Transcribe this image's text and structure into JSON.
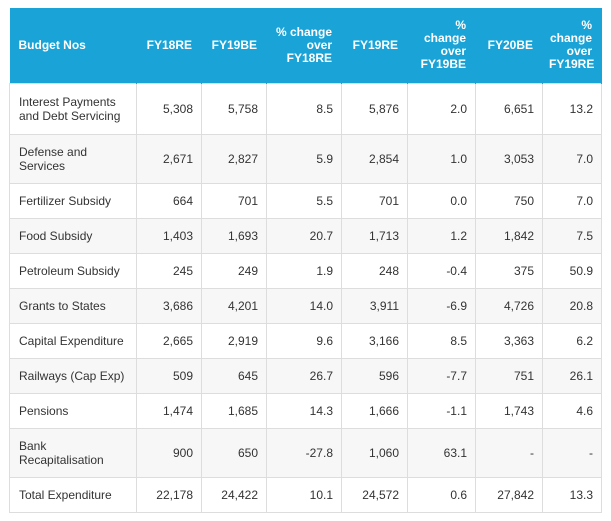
{
  "table": {
    "headers": [
      "Budget Nos",
      "FY18RE",
      "FY19BE",
      "% change over FY18RE",
      "FY19RE",
      "% change over FY19BE",
      "FY20BE",
      "% change over FY19RE"
    ],
    "rows": [
      [
        "Interest Payments and Debt Servicing",
        "5,308",
        "5,758",
        "8.5",
        "5,876",
        "2.0",
        "6,651",
        "13.2"
      ],
      [
        "Defense and Services",
        "2,671",
        "2,827",
        "5.9",
        "2,854",
        "1.0",
        "3,053",
        "7.0"
      ],
      [
        "Fertilizer Subsidy",
        "664",
        "701",
        "5.5",
        "701",
        "0.0",
        "750",
        "7.0"
      ],
      [
        "Food Subsidy",
        "1,403",
        "1,693",
        "20.7",
        "1,713",
        "1.2",
        "1,842",
        "7.5"
      ],
      [
        "Petroleum Subsidy",
        "245",
        "249",
        "1.9",
        "248",
        "-0.4",
        "375",
        "50.9"
      ],
      [
        "Grants to States",
        "3,686",
        "4,201",
        "14.0",
        "3,911",
        "-6.9",
        "4,726",
        "20.8"
      ],
      [
        "Capital Expenditure",
        "2,665",
        "2,919",
        "9.6",
        "3,166",
        "8.5",
        "3,363",
        "6.2"
      ],
      [
        "Railways (Cap Exp)",
        "509",
        "645",
        "26.7",
        "596",
        "-7.7",
        "751",
        "26.1"
      ],
      [
        "Pensions",
        "1,474",
        "1,685",
        "14.3",
        "1,666",
        "-1.1",
        "1,743",
        "4.6"
      ],
      [
        "Bank Recapitalisation",
        "900",
        "650",
        "-27.8",
        "1,060",
        "63.1",
        "-",
        "-"
      ],
      [
        "Total Expenditure",
        "22,178",
        "24,422",
        "10.1",
        "24,572",
        "0.6",
        "27,842",
        "13.3"
      ]
    ]
  },
  "colors": {
    "header_bg": "#1aa3d6",
    "header_text": "#ffffff",
    "border": "#dddddd"
  }
}
